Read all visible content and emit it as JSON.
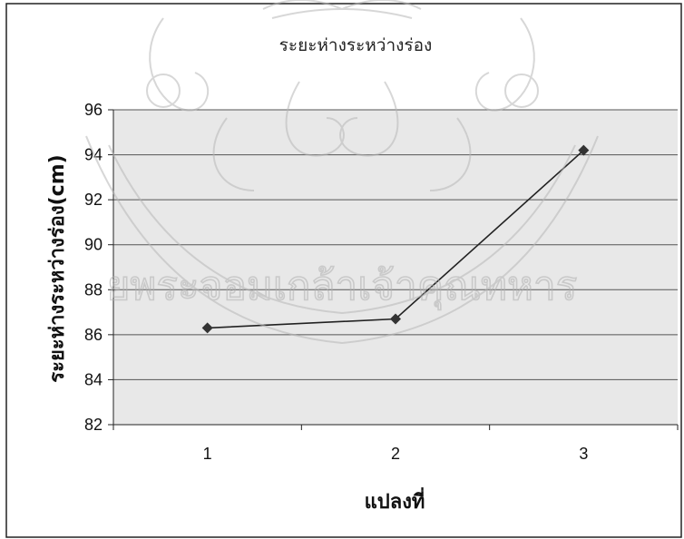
{
  "chart_data": {
    "type": "line",
    "title": "ระยะห่างระหว่างร่อง",
    "xlabel": "แปลงที่",
    "ylabel": "ระยะห่างระหว่างร่อง(cm)",
    "categories": [
      "1",
      "2",
      "3"
    ],
    "series": [
      {
        "values": [
          86.3,
          86.7,
          94.2
        ]
      }
    ],
    "ylim": [
      82,
      96
    ],
    "yticks": [
      82,
      84,
      86,
      88,
      90,
      92,
      94,
      96
    ],
    "grid": true,
    "legend": "none",
    "colors": {
      "line": "#222222",
      "marker": "#333333",
      "plot_background": "#e8e8e8",
      "gridline": "#555555",
      "frame": "#222222"
    }
  },
  "watermark": {
    "text": "ยพระจอมเกล้าเจ้าคุณทหาร"
  }
}
